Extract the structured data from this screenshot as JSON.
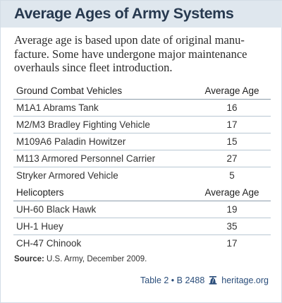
{
  "title": "Average Ages of Army Systems",
  "subtitle_lines": [
    "Average age is based upon date of original manu-",
    "facture. Some have undergone major maintenance",
    "overhauls since fleet introduction."
  ],
  "ground": {
    "header": "Ground Combat Vehicles",
    "value_header": "Average Age",
    "rows": [
      {
        "name": "M1A1 Abrams Tank",
        "age": "16"
      },
      {
        "name": "M2/M3 Bradley Fighting Vehicle",
        "age": "17"
      },
      {
        "name": "M109A6 Paladin Howitzer",
        "age": "15"
      },
      {
        "name": "M113 Armored Personnel Carrier",
        "age": "27"
      },
      {
        "name": "Stryker Armored Vehicle",
        "age": "5"
      }
    ]
  },
  "helicopters": {
    "header": "Helicopters",
    "value_header": "Average Age",
    "rows": [
      {
        "name": "UH-60 Black Hawk",
        "age": "19"
      },
      {
        "name": "UH-1 Huey",
        "age": "35"
      },
      {
        "name": "CH-47 Chinook",
        "age": "17"
      }
    ]
  },
  "source": {
    "label": "Source:",
    "text": " U.S. Army, December 2009."
  },
  "footer": {
    "table_ref": "Table 2 • B 2488",
    "site": "heritage.org",
    "icon": "liberty-bell-icon",
    "color": "#2a4d7a"
  },
  "colors": {
    "title_bar": "#dfe7ee",
    "title": "#27394f"
  }
}
